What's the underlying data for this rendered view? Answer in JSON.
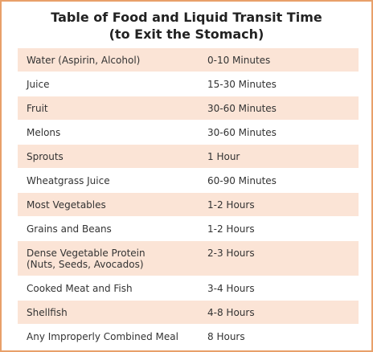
{
  "header": {
    "title": [
      "Table of Food and Liquid Transit Time",
      "(to Exit the Stomach)"
    ]
  },
  "table": {
    "rows": [
      {
        "item": "Water (Aspirin, Alcohol)",
        "time": "0-10 Minutes"
      },
      {
        "item": "Juice",
        "time": "15-30 Minutes"
      },
      {
        "item": "Fruit",
        "time": "30-60 Minutes"
      },
      {
        "item": "Melons",
        "time": "30-60 Minutes"
      },
      {
        "item": "Sprouts",
        "time": "1 Hour"
      },
      {
        "item": "Wheatgrass Juice",
        "time": "60-90 Minutes"
      },
      {
        "item": "Most Vegetables",
        "time": "1-2 Hours"
      },
      {
        "item": "Grains and Beans",
        "time": "1-2 Hours"
      },
      {
        "item": "Dense Vegetable Protein",
        "note": "(Nuts, Seeds, Avocados)",
        "time": "2-3 Hours"
      },
      {
        "item": "Cooked Meat and Fish",
        "time": "3-4 Hours"
      },
      {
        "item": "Shellfish",
        "time": "4-8 Hours"
      },
      {
        "item": "Any Improperly Combined Meal",
        "time": "8 Hours"
      }
    ]
  }
}
